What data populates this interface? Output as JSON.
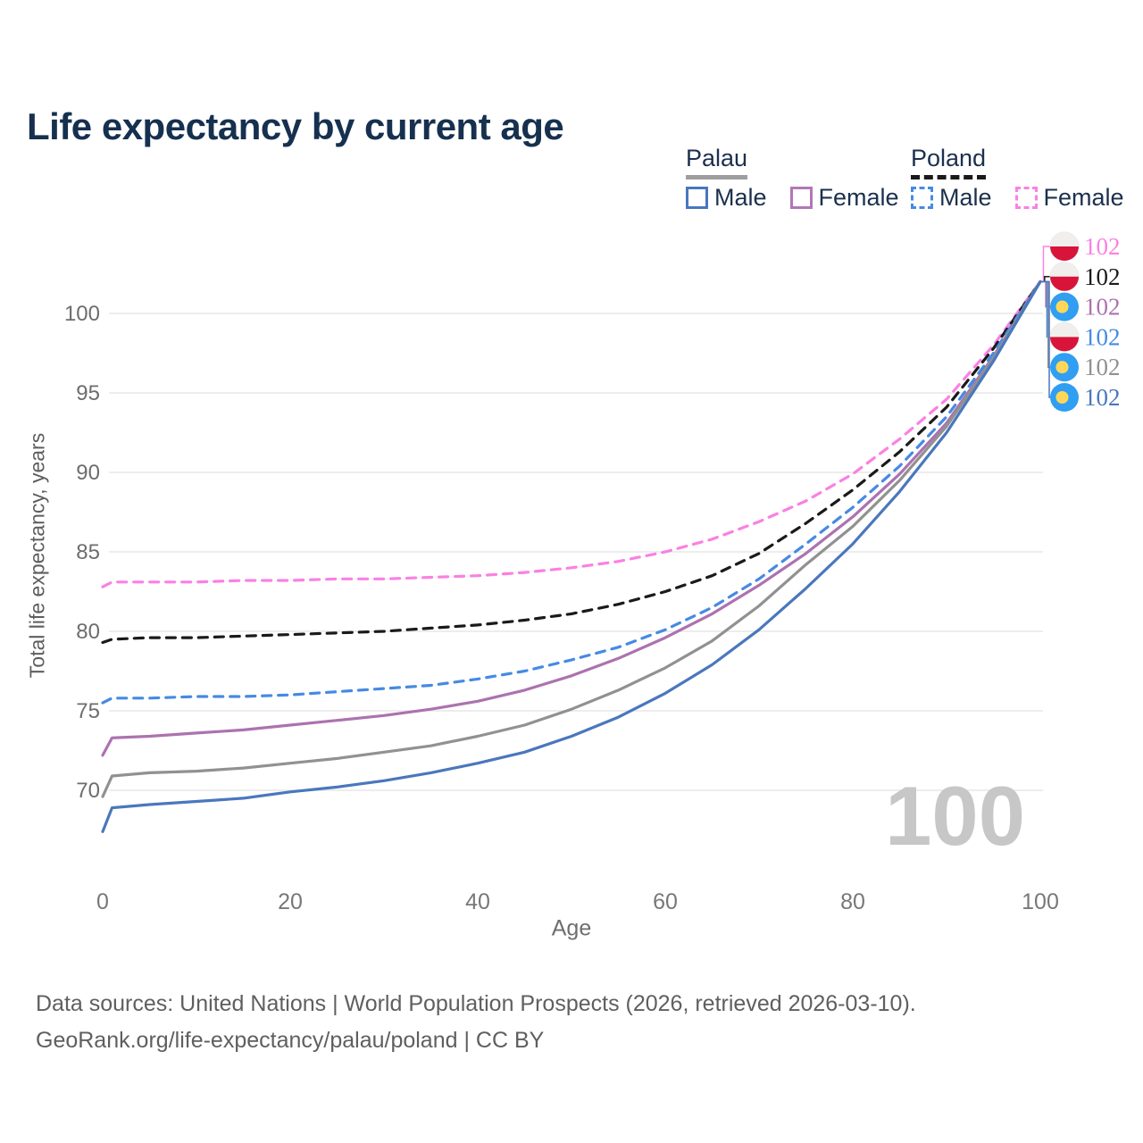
{
  "page": {
    "title": "Life expectancy by current age",
    "footer_line1": "Data sources: United Nations | World Population Prospects (2026, retrieved 2026-03-10).",
    "footer_line2": "GeoRank.org/life-expectancy/palau/poland | CC BY"
  },
  "colors": {
    "title": "#16304f",
    "legend_text": "#1c304e",
    "axis_text": "#6d6d6d",
    "gridline": "#e7e7e7",
    "watermark": "#c7c7c7"
  },
  "legend": {
    "groups": [
      {
        "country": "Palau",
        "line_color": "#9e9e9e",
        "line_style": "solid",
        "items": [
          {
            "label": "Male",
            "color": "#4a77bd",
            "border_style": "solid"
          },
          {
            "label": "Female",
            "color": "#b277b8",
            "border_style": "solid"
          }
        ]
      },
      {
        "country": "Poland",
        "line_color": "#1a1a1a",
        "line_style": "dashed",
        "items": [
          {
            "label": "Male",
            "color": "#468ae3",
            "border_style": "dashed"
          },
          {
            "label": "Female",
            "color": "#fb80e3",
            "border_style": "dashed"
          }
        ]
      }
    ]
  },
  "chart_data": {
    "type": "line",
    "title": "Life expectancy by current age",
    "xlabel": "Age",
    "ylabel": "Total life expectancy, years",
    "xlim": [
      0,
      100
    ],
    "ylim": [
      66,
      104
    ],
    "xticks": [
      0,
      20,
      40,
      60,
      80,
      100
    ],
    "yticks": [
      70,
      75,
      80,
      85,
      90,
      95,
      100
    ],
    "grid": "horizontal",
    "legend_position": "top-right",
    "age_counter_label": "100",
    "ages": [
      0,
      1,
      5,
      10,
      15,
      20,
      25,
      30,
      35,
      40,
      45,
      50,
      55,
      60,
      65,
      70,
      75,
      80,
      85,
      90,
      95,
      100
    ],
    "series": [
      {
        "id": "poland-female",
        "name": "Poland Female",
        "country": "Poland",
        "sex": "Female",
        "color": "#fb80e3",
        "dashed": true,
        "flag": "poland",
        "end_label": "102",
        "values": [
          82.8,
          83.1,
          83.1,
          83.1,
          83.2,
          83.2,
          83.3,
          83.3,
          83.4,
          83.5,
          83.7,
          84.0,
          84.4,
          85.0,
          85.8,
          86.9,
          88.2,
          89.9,
          92.1,
          94.6,
          98.0,
          102
        ]
      },
      {
        "id": "poland-total",
        "name": "Poland Total",
        "country": "Poland",
        "sex": "Both",
        "color": "#1a1a1a",
        "dashed": true,
        "flag": "poland",
        "end_label": "102",
        "values": [
          79.3,
          79.5,
          79.6,
          79.6,
          79.7,
          79.8,
          79.9,
          80.0,
          80.2,
          80.4,
          80.7,
          81.1,
          81.7,
          82.5,
          83.5,
          84.9,
          86.8,
          88.9,
          91.3,
          94.1,
          97.8,
          102
        ]
      },
      {
        "id": "palau-female",
        "name": "Palau Female",
        "country": "Palau",
        "sex": "Female",
        "color": "#ac72b0",
        "dashed": false,
        "flag": "palau",
        "end_label": "102",
        "values": [
          72.2,
          73.3,
          73.4,
          73.6,
          73.8,
          74.1,
          74.4,
          74.7,
          75.1,
          75.6,
          76.3,
          77.2,
          78.3,
          79.6,
          81.1,
          82.9,
          84.9,
          87.2,
          89.9,
          93.1,
          97.3,
          102
        ]
      },
      {
        "id": "poland-male",
        "name": "Poland Male",
        "country": "Poland",
        "sex": "Male",
        "color": "#468ae3",
        "dashed": true,
        "flag": "poland",
        "end_label": "102",
        "values": [
          75.5,
          75.8,
          75.8,
          75.9,
          75.9,
          76.0,
          76.2,
          76.4,
          76.6,
          77.0,
          77.5,
          78.2,
          79.0,
          80.1,
          81.5,
          83.3,
          85.5,
          87.8,
          90.4,
          93.5,
          97.5,
          102
        ]
      },
      {
        "id": "palau-total",
        "name": "Palau Total",
        "country": "Palau",
        "sex": "Both",
        "color": "#919191",
        "dashed": false,
        "flag": "palau",
        "end_label": "102",
        "values": [
          69.6,
          70.9,
          71.1,
          71.2,
          71.4,
          71.7,
          72.0,
          72.4,
          72.8,
          73.4,
          74.1,
          75.1,
          76.3,
          77.7,
          79.4,
          81.6,
          84.2,
          86.6,
          89.5,
          92.9,
          97.2,
          102
        ]
      },
      {
        "id": "palau-male",
        "name": "Palau Male",
        "country": "Palau",
        "sex": "Male",
        "color": "#4a77bd",
        "dashed": false,
        "flag": "palau",
        "end_label": "102",
        "values": [
          67.4,
          68.9,
          69.1,
          69.3,
          69.5,
          69.9,
          70.2,
          70.6,
          71.1,
          71.7,
          72.4,
          73.4,
          74.6,
          76.1,
          77.9,
          80.1,
          82.7,
          85.5,
          88.8,
          92.5,
          97.0,
          102
        ]
      }
    ]
  }
}
